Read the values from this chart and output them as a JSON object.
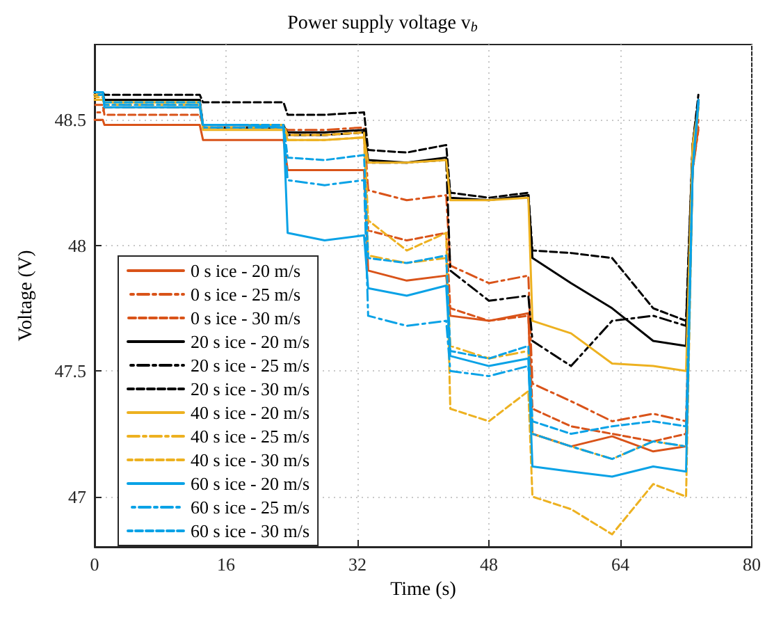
{
  "chart_data": {
    "type": "line",
    "title": "Power supply voltage v$_{b}$",
    "xlabel": "Time (s)",
    "ylabel": "Voltage (V)",
    "x": [
      0,
      1,
      1.2,
      12.8,
      13.2,
      18,
      23,
      23.5,
      28,
      32.8,
      33.3,
      38,
      42.8,
      43.3,
      48,
      52.8,
      53.3,
      58,
      63,
      68,
      72,
      72.8,
      73.5
    ],
    "xlim": [
      0,
      80
    ],
    "xticks": [
      0,
      16,
      32,
      48,
      64,
      80
    ],
    "ylim": [
      46.8,
      48.8
    ],
    "yticks": [
      47,
      47.5,
      48,
      48.5
    ],
    "grid": true,
    "legend": "bottom left",
    "marker": "none",
    "series": [
      {
        "name": "0 s ice - 20 m/s",
        "color": "#d95319",
        "line_style": "solid",
        "values": [
          48.5,
          48.5,
          48.48,
          48.48,
          48.42,
          48.42,
          48.42,
          48.3,
          48.3,
          48.3,
          47.9,
          47.86,
          47.88,
          47.72,
          47.7,
          47.73,
          47.25,
          47.2,
          47.24,
          47.18,
          47.2,
          48.3,
          48.47
        ]
      },
      {
        "name": "0 s ice - 25 m/s",
        "color": "#d95319",
        "line_style": "dashdot",
        "values": [
          48.53,
          48.53,
          48.55,
          48.55,
          48.47,
          48.47,
          48.47,
          48.46,
          48.46,
          48.47,
          48.22,
          48.18,
          48.2,
          47.92,
          47.85,
          47.88,
          47.45,
          47.38,
          47.3,
          47.33,
          47.3,
          48.3,
          48.46
        ]
      },
      {
        "name": "0 s ice - 30 m/s",
        "color": "#d95319",
        "line_style": "dashed",
        "values": [
          48.56,
          48.56,
          48.52,
          48.52,
          48.48,
          48.48,
          48.48,
          48.44,
          48.44,
          48.45,
          48.06,
          48.02,
          48.05,
          47.75,
          47.7,
          47.72,
          47.35,
          47.28,
          47.25,
          47.22,
          47.25,
          48.3,
          48.5
        ]
      },
      {
        "name": "20 s ice - 20 m/s",
        "color": "#000000",
        "line_style": "solid",
        "values": [
          48.6,
          48.6,
          48.58,
          48.58,
          48.47,
          48.47,
          48.47,
          48.45,
          48.45,
          48.46,
          48.34,
          48.33,
          48.35,
          48.19,
          48.18,
          48.2,
          47.95,
          47.85,
          47.75,
          47.62,
          47.6,
          48.4,
          48.58
        ]
      },
      {
        "name": "20 s ice - 25 m/s",
        "color": "#000000",
        "line_style": "dashdot",
        "values": [
          48.6,
          48.6,
          48.58,
          48.58,
          48.48,
          48.48,
          48.48,
          48.44,
          48.44,
          48.45,
          48.33,
          48.33,
          48.34,
          47.9,
          47.78,
          47.8,
          47.62,
          47.52,
          47.7,
          47.72,
          47.68,
          48.4,
          48.57
        ]
      },
      {
        "name": "20 s ice - 30 m/s",
        "color": "#000000",
        "line_style": "dashed",
        "values": [
          48.61,
          48.61,
          48.6,
          48.6,
          48.57,
          48.57,
          48.57,
          48.52,
          48.52,
          48.53,
          48.38,
          48.37,
          48.4,
          48.21,
          48.19,
          48.21,
          47.98,
          47.97,
          47.95,
          47.75,
          47.7,
          48.4,
          48.6
        ]
      },
      {
        "name": "40 s ice - 20 m/s",
        "color": "#edb120",
        "line_style": "solid",
        "values": [
          48.6,
          48.6,
          48.57,
          48.57,
          48.46,
          48.46,
          48.46,
          48.42,
          48.42,
          48.43,
          48.33,
          48.33,
          48.34,
          48.18,
          48.18,
          48.19,
          47.7,
          47.65,
          47.53,
          47.52,
          47.5,
          48.4,
          48.55
        ]
      },
      {
        "name": "40 s ice - 25 m/s",
        "color": "#edb120",
        "line_style": "dashdot",
        "values": [
          48.58,
          48.58,
          48.56,
          48.56,
          48.47,
          48.47,
          48.47,
          48.42,
          48.42,
          48.43,
          47.96,
          47.93,
          47.95,
          47.6,
          47.55,
          47.58,
          47.25,
          47.2,
          47.15,
          47.22,
          47.2,
          48.3,
          48.55
        ]
      },
      {
        "name": "40 s ice - 30 m/s",
        "color": "#edb120",
        "line_style": "dashed",
        "values": [
          48.59,
          48.59,
          48.57,
          48.57,
          48.48,
          48.48,
          48.48,
          48.44,
          48.44,
          48.45,
          48.1,
          47.98,
          48.05,
          47.35,
          47.3,
          47.42,
          47.0,
          46.95,
          46.85,
          47.05,
          47.0,
          48.3,
          48.55
        ]
      },
      {
        "name": "60 s ice - 20 m/s",
        "color": "#0aa2e6",
        "line_style": "solid",
        "values": [
          48.61,
          48.61,
          48.55,
          48.55,
          48.48,
          48.48,
          48.47,
          48.05,
          48.02,
          48.04,
          47.83,
          47.8,
          47.84,
          47.56,
          47.52,
          47.55,
          47.12,
          47.1,
          47.08,
          47.12,
          47.1,
          48.3,
          48.58
        ]
      },
      {
        "name": "60 s ice - 25 m/s",
        "color": "#0aa2e6",
        "line_style": "dashdot",
        "values": [
          48.6,
          48.6,
          48.56,
          48.56,
          48.47,
          48.47,
          48.47,
          48.26,
          48.24,
          48.26,
          47.72,
          47.68,
          47.7,
          47.5,
          47.48,
          47.52,
          47.25,
          47.2,
          47.15,
          47.22,
          47.2,
          48.3,
          48.56
        ]
      },
      {
        "name": "60 s ice - 30 m/s",
        "color": "#0aa2e6",
        "line_style": "dashed",
        "values": [
          48.61,
          48.61,
          48.57,
          48.57,
          48.48,
          48.48,
          48.48,
          48.35,
          48.34,
          48.36,
          47.95,
          47.93,
          47.96,
          47.58,
          47.55,
          47.6,
          47.3,
          47.25,
          47.28,
          47.3,
          47.28,
          48.3,
          48.57
        ]
      }
    ]
  }
}
